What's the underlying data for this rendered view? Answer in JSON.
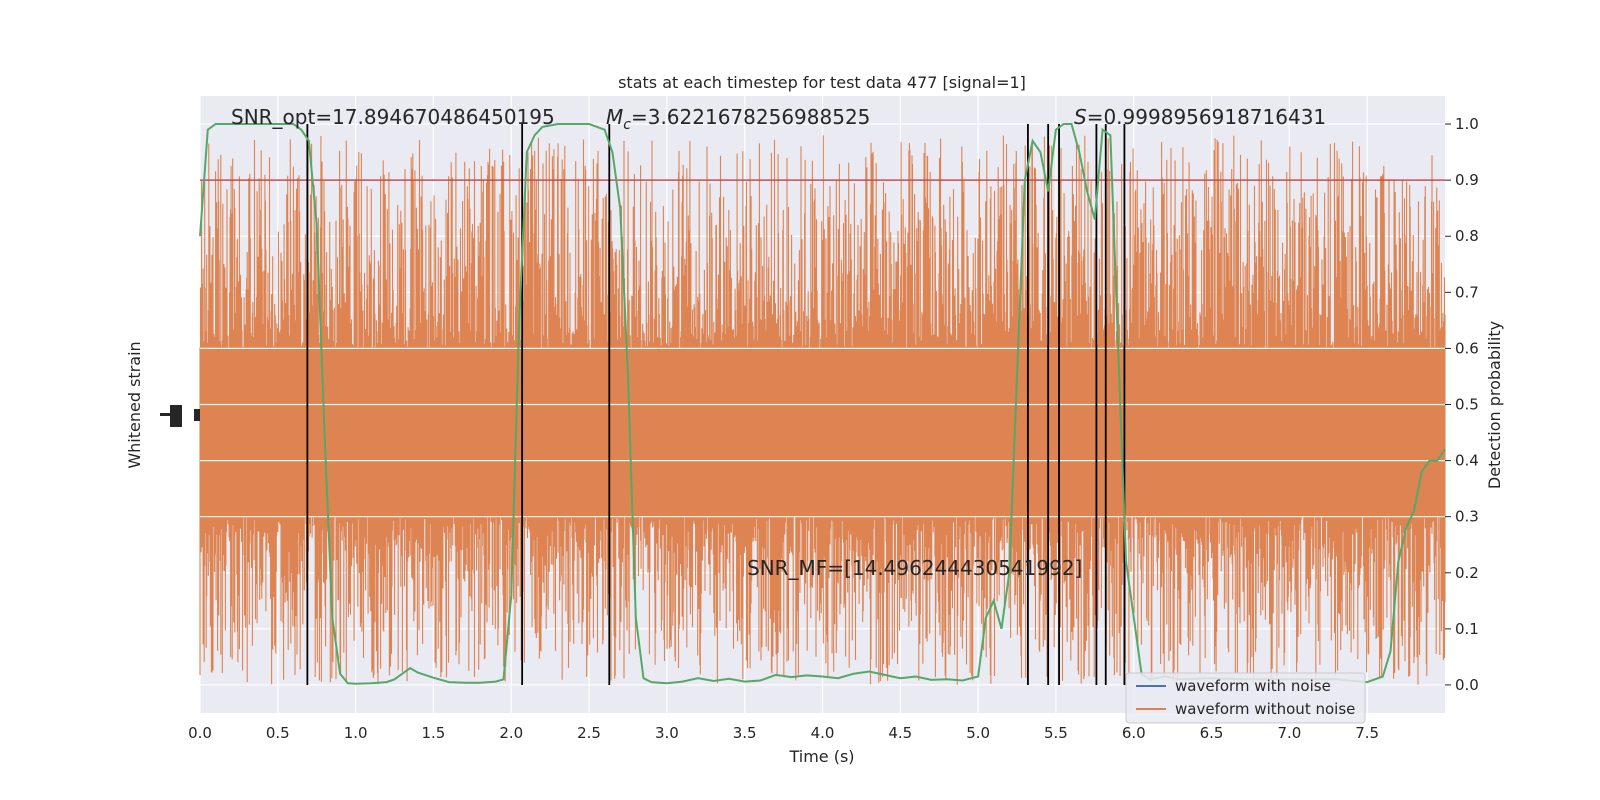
{
  "chart_data": {
    "type": "line",
    "title": "stats at each timestep for test data 477 [signal=1]",
    "xlabel": "Time (s)",
    "ylabel_left": "Whitened strain",
    "ylabel_right": "Detection probability",
    "xlim": [
      0.0,
      8.0
    ],
    "ylim_right": [
      -0.05,
      1.05
    ],
    "grid": true,
    "x_ticks": [
      "0.0",
      "0.5",
      "1.0",
      "1.5",
      "2.0",
      "2.5",
      "3.0",
      "3.5",
      "4.0",
      "4.5",
      "5.0",
      "5.5",
      "6.0",
      "6.5",
      "7.0",
      "7.5"
    ],
    "y_ticks_right": [
      "0.0",
      "0.1",
      "0.2",
      "0.3",
      "0.4",
      "0.5",
      "0.6",
      "0.7",
      "0.8",
      "0.9",
      "1.0"
    ],
    "colors": {
      "plot_bg": "#eaeaf2",
      "noise_waveform": "#dd8452",
      "clean_waveform": "#4c72b0",
      "probability": "#55a868",
      "threshold": "#c44e52",
      "detection_lines": "#000000"
    },
    "annotations": {
      "snr_opt": "SNR_opt=17.894670486450195",
      "mc_symbol": "M",
      "mc_sub": "c",
      "mc_value": "=3.6221678256988525",
      "s_symbol": "S",
      "s_value": "=0.9998956918716431",
      "snr_mf": "SNR_MF=[14.496244430541992]"
    },
    "threshold": 0.9,
    "detection_times": [
      0.69,
      2.07,
      2.63,
      5.32,
      5.45,
      5.52,
      5.76,
      5.82,
      5.94
    ],
    "series": [
      {
        "name": "waveform with noise",
        "axis": "left",
        "description_values": "dense whitened strain noise, centered"
      },
      {
        "name": "waveform without noise",
        "axis": "left",
        "description_values": "clean waveform"
      },
      {
        "axis": "right",
        "x": [
          0.0,
          0.05,
          0.1,
          0.15,
          0.2,
          0.3,
          0.4,
          0.5,
          0.6,
          0.65,
          0.7,
          0.75,
          0.8,
          0.85,
          0.9,
          0.95,
          1.0,
          1.1,
          1.2,
          1.25,
          1.3,
          1.35,
          1.4,
          1.5,
          1.6,
          1.7,
          1.8,
          1.9,
          1.95,
          2.0,
          2.05,
          2.1,
          2.15,
          2.2,
          2.3,
          2.4,
          2.5,
          2.6,
          2.65,
          2.7,
          2.75,
          2.8,
          2.85,
          2.9,
          3.0,
          3.1,
          3.2,
          3.3,
          3.4,
          3.5,
          3.6,
          3.7,
          3.8,
          3.9,
          4.0,
          4.1,
          4.2,
          4.3,
          4.4,
          4.5,
          4.6,
          4.7,
          4.8,
          4.9,
          5.0,
          5.05,
          5.1,
          5.15,
          5.2,
          5.25,
          5.3,
          5.35,
          5.4,
          5.45,
          5.5,
          5.55,
          5.6,
          5.65,
          5.7,
          5.75,
          5.8,
          5.85,
          5.9,
          5.95,
          6.0,
          6.05,
          6.1,
          6.2,
          6.3,
          6.5,
          6.7,
          6.9,
          7.1,
          7.3,
          7.5,
          7.6,
          7.65,
          7.7,
          7.75,
          7.8,
          7.85,
          7.9,
          7.95,
          8.0
        ],
        "values": [
          0.8,
          0.99,
          1.0,
          1.0,
          1.0,
          1.0,
          1.0,
          1.0,
          1.0,
          0.99,
          0.97,
          0.82,
          0.45,
          0.12,
          0.02,
          0.003,
          0.002,
          0.003,
          0.005,
          0.01,
          0.02,
          0.03,
          0.022,
          0.013,
          0.005,
          0.004,
          0.004,
          0.006,
          0.01,
          0.16,
          0.64,
          0.95,
          0.98,
          0.995,
          1.0,
          1.0,
          1.0,
          0.99,
          0.95,
          0.85,
          0.55,
          0.12,
          0.012,
          0.005,
          0.003,
          0.006,
          0.012,
          0.007,
          0.011,
          0.006,
          0.008,
          0.018,
          0.014,
          0.017,
          0.015,
          0.012,
          0.02,
          0.024,
          0.018,
          0.012,
          0.015,
          0.009,
          0.01,
          0.008,
          0.015,
          0.12,
          0.15,
          0.1,
          0.2,
          0.55,
          0.9,
          0.97,
          0.95,
          0.88,
          0.99,
          1.0,
          1.0,
          0.95,
          0.88,
          0.83,
          0.99,
          0.98,
          0.6,
          0.22,
          0.12,
          0.02,
          0.01,
          0.015,
          0.01,
          0.012,
          0.01,
          0.01,
          0.01,
          0.01,
          0.005,
          0.015,
          0.06,
          0.22,
          0.28,
          0.31,
          0.38,
          0.4,
          0.4,
          0.42
        ]
      }
    ]
  }
}
